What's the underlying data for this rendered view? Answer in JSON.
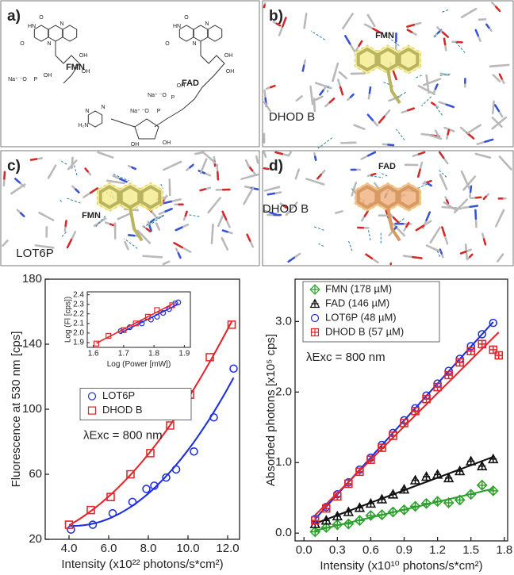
{
  "panels": [
    {
      "label": "a)",
      "names": [
        "FMN",
        "FAD"
      ],
      "atoms": [
        "HN",
        "O",
        "O",
        "N",
        "N",
        "OH",
        "OH",
        "OH",
        "Na⁺ ⁻O",
        "P",
        "HN",
        "O",
        "O",
        "N",
        "N",
        "OH",
        "OH",
        "OH",
        "Na⁺ ⁻O",
        "P",
        "Na⁺ ⁻O",
        "P",
        "H₂N",
        "N",
        "N",
        "OH",
        "OH"
      ]
    },
    {
      "label": "b)",
      "names": [
        "FMN",
        "DHOD B"
      ]
    },
    {
      "label": "c)",
      "names": [
        "FMN",
        "LOT6P"
      ]
    },
    {
      "label": "d)",
      "names": [
        "FAD",
        "DHOD B"
      ]
    }
  ],
  "chart_data": [
    {
      "type": "scatter",
      "xlabel": "Intensity (x10²² photons/s*cm²)",
      "ylabel": "Fluorescence at 530 nm [cps]",
      "xlim": [
        2.8,
        12.6
      ],
      "xticks": [
        {
          "value": 4,
          "label": "4.0"
        },
        {
          "value": 6,
          "label": "6.0"
        },
        {
          "value": 8,
          "label": "8.0"
        },
        {
          "value": 10,
          "label": "10.0"
        },
        {
          "value": 12,
          "label": "12.0"
        }
      ],
      "ylim": [
        20,
        180
      ],
      "yticks": [
        20,
        60,
        100,
        140,
        180
      ],
      "fit": "quadratic",
      "legend": "center-left",
      "annotation": "λExc = 800 nm",
      "series": [
        {
          "name": "LOT6P",
          "color": "#1f2fe0",
          "marker": "circle",
          "x": [
            4.1,
            5.2,
            6.2,
            7.2,
            7.9,
            8.3,
            8.9,
            9.4,
            10.3,
            11.3,
            12.3
          ],
          "values": [
            26,
            29,
            36,
            43,
            51,
            53,
            58,
            63,
            74,
            95,
            125
          ]
        },
        {
          "name": "DHOD B",
          "color": "#e3262a",
          "marker": "square",
          "x": [
            4.0,
            5.1,
            6.1,
            7.1,
            8.1,
            9.1,
            10.1,
            11.1,
            12.2
          ],
          "values": [
            29,
            38,
            46,
            60,
            73,
            90,
            109,
            132,
            152
          ]
        }
      ],
      "inset": {
        "type": "scatter",
        "xlabel": "Log (Power [mW])",
        "ylabel": "Log (Fl [cps])",
        "xlim": [
          1.58,
          1.92
        ],
        "xticks": [
          1.6,
          1.7,
          1.8,
          1.9
        ],
        "ylim": [
          1.85,
          2.43
        ],
        "yticks": [
          1.9,
          {
            "value": 2,
            "label": "2.0"
          },
          2.1,
          2.2,
          2.3,
          2.4
        ],
        "fit": "linear",
        "series": [
          {
            "color": "#1f2fe0",
            "marker": "circle",
            "x": [
              1.69,
              1.72,
              1.76,
              1.79,
              1.81,
              1.83,
              1.85,
              1.87,
              1.88
            ],
            "values": [
              2.02,
              2.06,
              2.1,
              2.14,
              2.17,
              2.21,
              2.25,
              2.31,
              2.32
            ]
          },
          {
            "color": "#e3262a",
            "marker": "square",
            "x": [
              1.61,
              1.65,
              1.7,
              1.74,
              1.78,
              1.81,
              1.86
            ],
            "values": [
              1.89,
              1.97,
              2.03,
              2.1,
              2.17,
              2.24,
              2.29
            ]
          }
        ]
      }
    },
    {
      "type": "scatter",
      "xlabel": "Intensity (x10¹⁰ photons/s*cm²)",
      "ylabel": "Absorbed photons [x10⁵ cps]",
      "xlim": [
        -0.08,
        1.83
      ],
      "xticks": [
        {
          "value": 0,
          "label": "0.0"
        },
        0.3,
        0.6,
        0.9,
        1.2,
        1.5,
        1.8
      ],
      "ylim": [
        -0.11,
        3.6
      ],
      "yticks": [
        {
          "value": 0,
          "label": "0.0"
        },
        {
          "value": 1,
          "label": "1.0"
        },
        {
          "value": 2,
          "label": "2.0"
        },
        {
          "value": 3,
          "label": "3.0"
        }
      ],
      "fit": "linear",
      "legend": "upper-left",
      "annotation": "λExc = 800 nm",
      "series": [
        {
          "name": "FMN (178 µM)",
          "color": "#2ca02c",
          "marker": "crossed-diamond",
          "x": [
            0.1,
            0.2,
            0.3,
            0.4,
            0.5,
            0.6,
            0.7,
            0.8,
            0.9,
            1.0,
            1.1,
            1.2,
            1.3,
            1.4,
            1.5,
            1.6,
            1.7
          ],
          "values": [
            0.02,
            0.08,
            0.12,
            0.13,
            0.18,
            0.25,
            0.26,
            0.3,
            0.33,
            0.38,
            0.42,
            0.45,
            0.43,
            0.47,
            0.55,
            0.68,
            0.6
          ]
        },
        {
          "name": "FAD (146 µM)",
          "color": "#111111",
          "marker": "crossed-triangle",
          "x": [
            0.1,
            0.2,
            0.3,
            0.4,
            0.5,
            0.6,
            0.7,
            0.8,
            0.9,
            1.0,
            1.1,
            1.2,
            1.3,
            1.4,
            1.5,
            1.6,
            1.7
          ],
          "values": [
            0.13,
            0.18,
            0.24,
            0.3,
            0.36,
            0.42,
            0.48,
            0.55,
            0.62,
            0.75,
            0.8,
            0.83,
            0.78,
            0.88,
            1.02,
            0.95,
            1.05
          ]
        },
        {
          "name": "LOT6P (48 µM)",
          "color": "#1f2fe0",
          "marker": "circle",
          "x": [
            0.1,
            0.2,
            0.3,
            0.4,
            0.5,
            0.6,
            0.7,
            0.8,
            0.9,
            1.0,
            1.1,
            1.2,
            1.3,
            1.4,
            1.5,
            1.6,
            1.7
          ],
          "values": [
            0.2,
            0.37,
            0.55,
            0.72,
            0.9,
            1.07,
            1.25,
            1.42,
            1.6,
            1.77,
            1.95,
            2.12,
            2.3,
            2.47,
            2.65,
            2.82,
            2.98
          ]
        },
        {
          "name": "DHOD B (57 µM)",
          "color": "#e3262a",
          "marker": "crossed-square",
          "x": [
            0.1,
            0.2,
            0.3,
            0.4,
            0.5,
            0.6,
            0.7,
            0.8,
            0.9,
            1.0,
            1.1,
            1.2,
            1.3,
            1.4,
            1.5,
            1.6,
            1.7,
            1.75
          ],
          "values": [
            0.18,
            0.35,
            0.52,
            0.7,
            0.87,
            1.04,
            1.21,
            1.38,
            1.56,
            1.73,
            1.9,
            2.07,
            2.24,
            2.42,
            2.58,
            2.68,
            2.6,
            2.52
          ]
        }
      ]
    }
  ]
}
